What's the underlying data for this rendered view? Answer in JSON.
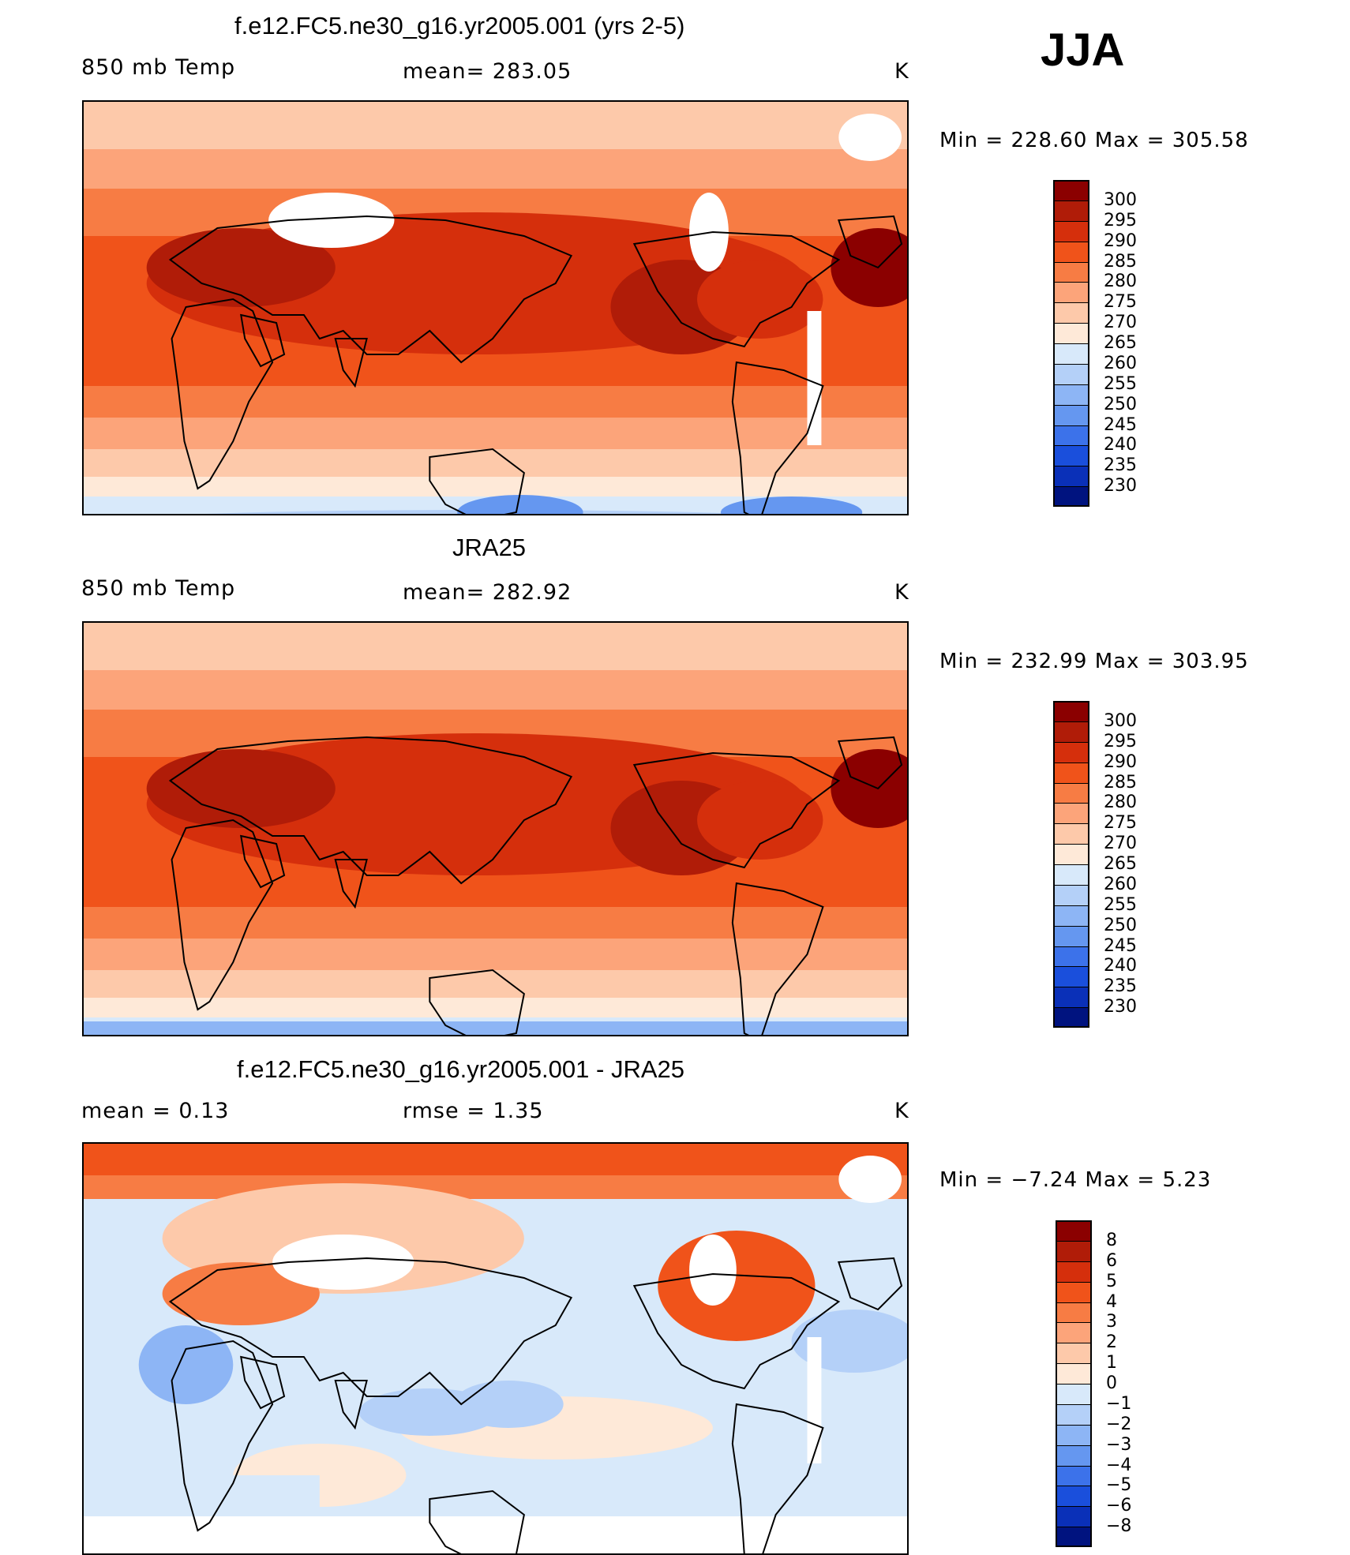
{
  "season": "JJA",
  "panels": [
    {
      "title": "f.e12.FC5.ne30_g16.yr2005.001 (yrs 2-5)",
      "left_label": "850 mb Temp",
      "center_label": "mean= 283.05",
      "units": "K",
      "minmax": "Min = 228.60 Max = 305.58",
      "scale": "abs"
    },
    {
      "title": "JRA25",
      "left_label": "850 mb Temp",
      "center_label": "mean= 282.92",
      "units": "K",
      "minmax": "Min = 232.99 Max = 303.95",
      "scale": "abs"
    },
    {
      "title": "f.e12.FC5.ne30_g16.yr2005.001 - JRA25",
      "left_label": "mean =    0.13",
      "center_label": "rmse =    1.35",
      "units": "K",
      "minmax": "Min =  −7.24 Max =    5.23",
      "scale": "diff"
    }
  ],
  "colorbars": {
    "abs": {
      "labels": [
        "300",
        "295",
        "290",
        "285",
        "280",
        "275",
        "270",
        "265",
        "260",
        "255",
        "250",
        "245",
        "240",
        "235",
        "230"
      ],
      "colors": [
        "#8b0000",
        "#b01c08",
        "#d52f0c",
        "#f0531a",
        "#f77c44",
        "#fca47a",
        "#fdc9aa",
        "#fee9d8",
        "#d8e9fa",
        "#b4d0f8",
        "#8db5f5",
        "#6597f0",
        "#3c72ea",
        "#1a4fdc",
        "#0a30b8",
        "#00137f"
      ]
    },
    "diff": {
      "labels": [
        "8",
        "6",
        "5",
        "4",
        "3",
        "2",
        "1",
        "0",
        "−1",
        "−2",
        "−3",
        "−4",
        "−5",
        "−6",
        "−8"
      ],
      "colors": [
        "#8b0000",
        "#b01c08",
        "#d52f0c",
        "#f0531a",
        "#f77c44",
        "#fca47a",
        "#fdc9aa",
        "#fee9d8",
        "#d8e9fa",
        "#b4d0f8",
        "#8db5f5",
        "#6597f0",
        "#3c72ea",
        "#1a4fdc",
        "#0a30b8",
        "#00137f"
      ]
    }
  }
}
